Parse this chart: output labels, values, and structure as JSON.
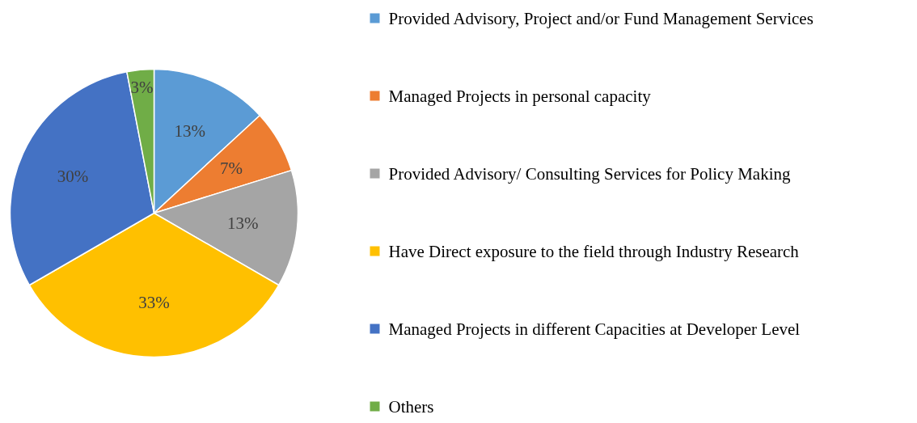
{
  "chart_data": {
    "type": "pie",
    "categories": [
      "Provided Advisory, Project and/or Fund Management Services",
      "Managed Projects in personal capacity",
      "Provided Advisory/ Consulting Services for Policy Making",
      "Have Direct exposure to the field through Industry Research",
      "Managed Projects in different Capacities at Developer Level",
      "Others"
    ],
    "values": [
      13,
      7,
      13,
      33,
      30,
      3
    ],
    "colors": [
      "#5b9bd5",
      "#ed7d31",
      "#a5a5a5",
      "#ffc000",
      "#4472c4",
      "#70ad47"
    ],
    "value_labels": [
      "13%",
      "7%",
      "13%",
      "33%",
      "30%",
      "3%"
    ],
    "legend": "right"
  }
}
